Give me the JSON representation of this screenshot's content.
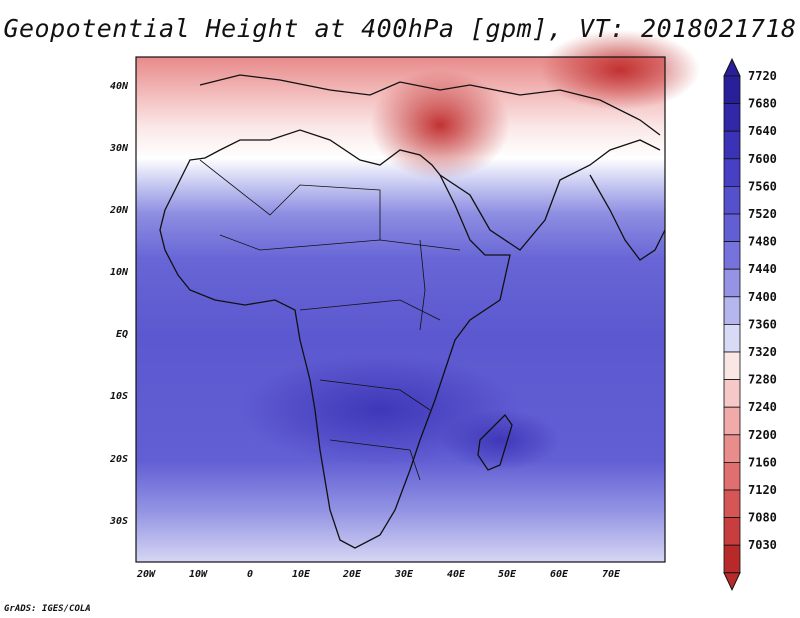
{
  "title": "Geopotential Height at 400hPa [gpm], VT: 2018021718",
  "x_ticks": [
    "20W",
    "10W",
    "0",
    "10E",
    "20E",
    "30E",
    "40E",
    "50E",
    "60E",
    "70E"
  ],
  "y_ticks": [
    "40N",
    "30N",
    "20N",
    "10N",
    "EQ",
    "10S",
    "20S",
    "30S"
  ],
  "colorbar": {
    "labels": [
      "7720",
      "7680",
      "7640",
      "7600",
      "7560",
      "7520",
      "7480",
      "7440",
      "7400",
      "7360",
      "7320",
      "7280",
      "7240",
      "7200",
      "7160",
      "7120",
      "7080",
      "7030"
    ],
    "colors": [
      "#2a1f9a",
      "#3128a8",
      "#3a33b8",
      "#4840c4",
      "#5550cc",
      "#625fd4",
      "#7674dc",
      "#9594e4",
      "#b5b6ee",
      "#d8daf6",
      "#fbe6e6",
      "#f6c8c8",
      "#f0aaaa",
      "#e88c8c",
      "#e07070",
      "#d65656",
      "#c83e3e",
      "#b82a2a"
    ]
  },
  "credit": "GrADS: IGES/COLA"
}
